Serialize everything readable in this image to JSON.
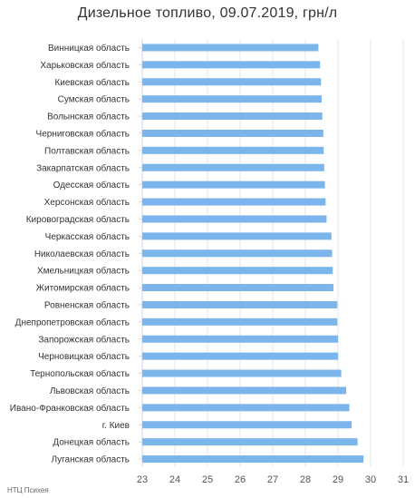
{
  "chart_data": {
    "type": "bar",
    "orientation": "horizontal",
    "title": "Дизельное топливо, 09.07.2019, грн/л",
    "xlabel": "",
    "ylabel": "",
    "xlim": [
      23,
      31
    ],
    "x_ticks": [
      "23",
      "24",
      "25",
      "26",
      "27",
      "28",
      "29",
      "30",
      "31"
    ],
    "grid": "vertical",
    "bar_color": "#7cb5ec",
    "categories": [
      "Винницкая область",
      "Харьковская область",
      "Киевская область",
      "Сумская область",
      "Волынская область",
      "Черниговская область",
      "Полтавская область",
      "Закарпатская область",
      "Одесская область",
      "Херсонская область",
      "Кировоградская область",
      "Черкасская область",
      "Николаевская область",
      "Хмельницкая область",
      "Житомирская область",
      "Ровненская область",
      "Днепропетровская область",
      "Запорожская область",
      "Черновицкая область",
      "Тернопольская область",
      "Львовская область",
      "Ивано-Франковская область",
      "г. Киев",
      "Донецкая область",
      "Луганская область"
    ],
    "values": [
      28.4,
      28.45,
      28.48,
      28.5,
      28.52,
      28.55,
      28.56,
      28.58,
      28.6,
      28.62,
      28.65,
      28.8,
      28.82,
      28.84,
      28.86,
      28.98,
      28.98,
      29.0,
      29.0,
      29.1,
      29.25,
      29.35,
      29.42,
      29.6,
      29.78
    ]
  },
  "footer": {
    "credit": "НТЦ Психея"
  }
}
